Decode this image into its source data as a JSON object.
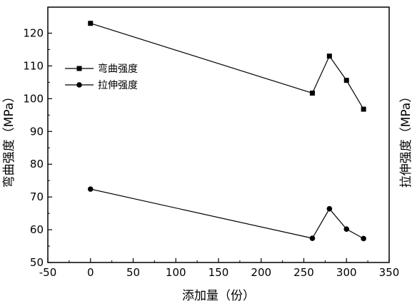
{
  "chart_data": {
    "type": "line",
    "xlabel": "添加量（份）",
    "ylabel": "弯曲强度（MPa）",
    "y2label": "拉伸强度（MPa）",
    "xlim": [
      -50,
      350
    ],
    "ylim": [
      50,
      125
    ],
    "xticks": [
      -50,
      0,
      50,
      100,
      150,
      200,
      250,
      300,
      350
    ],
    "yticks": [
      50,
      60,
      70,
      80,
      90,
      100,
      110,
      120
    ],
    "ytick_labels": [
      "50",
      "60",
      "70",
      "80",
      "90",
      "100",
      "110",
      "120"
    ],
    "grid": false,
    "legend_position": "upper-left",
    "series": [
      {
        "name": "弯曲强度",
        "marker": "square",
        "color": "#000000",
        "x": [
          0,
          260,
          280,
          300,
          320
        ],
        "y": [
          123,
          101.7,
          113,
          105.6,
          96.8
        ]
      },
      {
        "name": "拉伸强度",
        "marker": "circle",
        "color": "#000000",
        "x": [
          0,
          260,
          280,
          300,
          320
        ],
        "y": [
          72.4,
          57.4,
          66.4,
          60.2,
          57.3
        ]
      }
    ]
  }
}
